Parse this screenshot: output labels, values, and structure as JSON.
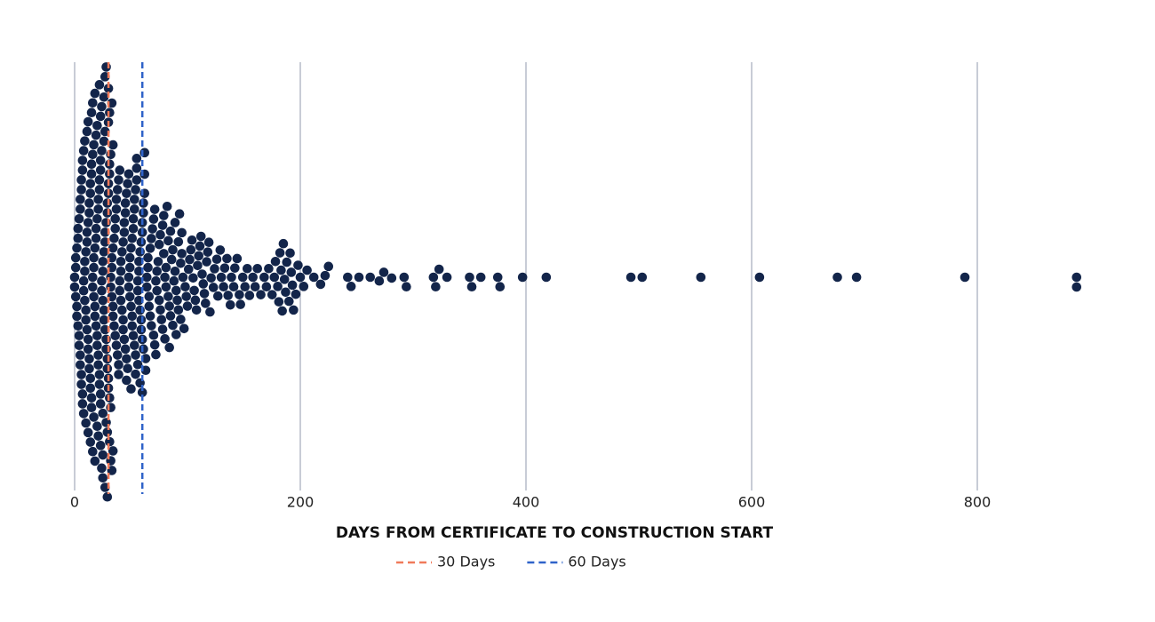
{
  "chart_data": {
    "type": "beeswarm",
    "x_label": "DAYS FROM CERTIFICATE TO CONSTRUCTION START",
    "color": "#13254a",
    "x": [
      0,
      0,
      1,
      1,
      1,
      2,
      2,
      2,
      3,
      3,
      3,
      4,
      4,
      4,
      5,
      5,
      5,
      5,
      6,
      6,
      6,
      6,
      7,
      7,
      7,
      7,
      8,
      8,
      8,
      8,
      9,
      9,
      9,
      9,
      10,
      10,
      10,
      10,
      11,
      11,
      11,
      11,
      12,
      12,
      12,
      12,
      12,
      13,
      13,
      13,
      13,
      14,
      14,
      14,
      14,
      14,
      15,
      15,
      15,
      15,
      15,
      16,
      16,
      16,
      16,
      16,
      17,
      17,
      17,
      17,
      17,
      18,
      18,
      18,
      18,
      18,
      19,
      19,
      19,
      19,
      20,
      20,
      20,
      20,
      20,
      21,
      21,
      21,
      21,
      21,
      22,
      22,
      22,
      22,
      22,
      23,
      23,
      23,
      23,
      23,
      23,
      24,
      24,
      24,
      24,
      24,
      25,
      25,
      25,
      25,
      25,
      25,
      26,
      26,
      26,
      26,
      26,
      27,
      27,
      27,
      27,
      27,
      27,
      28,
      28,
      28,
      28,
      28,
      29,
      29,
      29,
      29,
      29,
      29,
      30,
      30,
      30,
      30,
      30,
      30,
      31,
      31,
      31,
      31,
      31,
      32,
      32,
      32,
      32,
      32,
      33,
      33,
      33,
      33,
      33,
      34,
      34,
      34,
      34,
      34,
      35,
      35,
      36,
      36,
      36,
      37,
      37,
      37,
      38,
      38,
      39,
      39,
      39,
      40,
      40,
      40,
      41,
      41,
      41,
      42,
      42,
      43,
      43,
      43,
      44,
      44,
      44,
      45,
      45,
      45,
      46,
      46,
      46,
      47,
      47,
      48,
      48,
      48,
      49,
      49,
      49,
      50,
      50,
      50,
      51,
      51,
      51,
      52,
      52,
      52,
      53,
      53,
      53,
      54,
      54,
      54,
      55,
      55,
      55,
      56,
      56,
      56,
      57,
      57,
      57,
      58,
      58,
      58,
      59,
      59,
      59,
      60,
      60,
      60,
      60,
      61,
      61,
      61,
      62,
      62,
      62,
      63,
      63,
      64,
      64,
      65,
      65,
      66,
      66,
      67,
      67,
      68,
      68,
      69,
      70,
      70,
      71,
      71,
      72,
      72,
      73,
      73,
      74,
      75,
      75,
      76,
      76,
      77,
      78,
      78,
      79,
      79,
      80,
      80,
      81,
      81,
      82,
      83,
      83,
      84,
      84,
      85,
      85,
      86,
      87,
      87,
      88,
      89,
      89,
      90,
      90,
      91,
      92,
      92,
      93,
      94,
      94,
      95,
      95,
      96,
      97,
      98,
      99,
      100,
      101,
      102,
      103,
      104,
      105,
      106,
      107,
      108,
      109,
      110,
      111,
      112,
      113,
      114,
      115,
      116,
      117,
      118,
      119,
      120,
      121,
      123,
      124,
      126,
      127,
      129,
      130,
      132,
      133,
      135,
      136,
      138,
      139,
      141,
      142,
      144,
      146,
      147,
      149,
      151,
      153,
      155,
      158,
      160,
      162,
      165,
      168,
      170,
      172,
      175,
      177,
      178,
      180,
      181,
      182,
      183,
      184,
      185,
      186,
      187,
      188,
      190,
      191,
      192,
      193,
      194,
      196,
      198,
      200,
      203,
      206,
      212,
      218,
      222,
      225,
      242,
      245,
      252,
      262,
      270,
      274,
      281,
      292,
      294,
      318,
      320,
      323,
      330,
      350,
      352,
      360,
      375,
      377,
      397,
      418,
      493,
      503,
      555,
      607,
      676,
      693,
      789,
      888,
      888
    ],
    "xlim": [
      0,
      900
    ],
    "xticks": [
      0,
      200,
      400,
      600,
      800
    ],
    "grid": true,
    "reference_lines": [
      {
        "value": 30,
        "label": "30 Days",
        "color": "#f07a5a"
      },
      {
        "value": 60,
        "label": "60 Days",
        "color": "#2f63c9"
      }
    ]
  }
}
